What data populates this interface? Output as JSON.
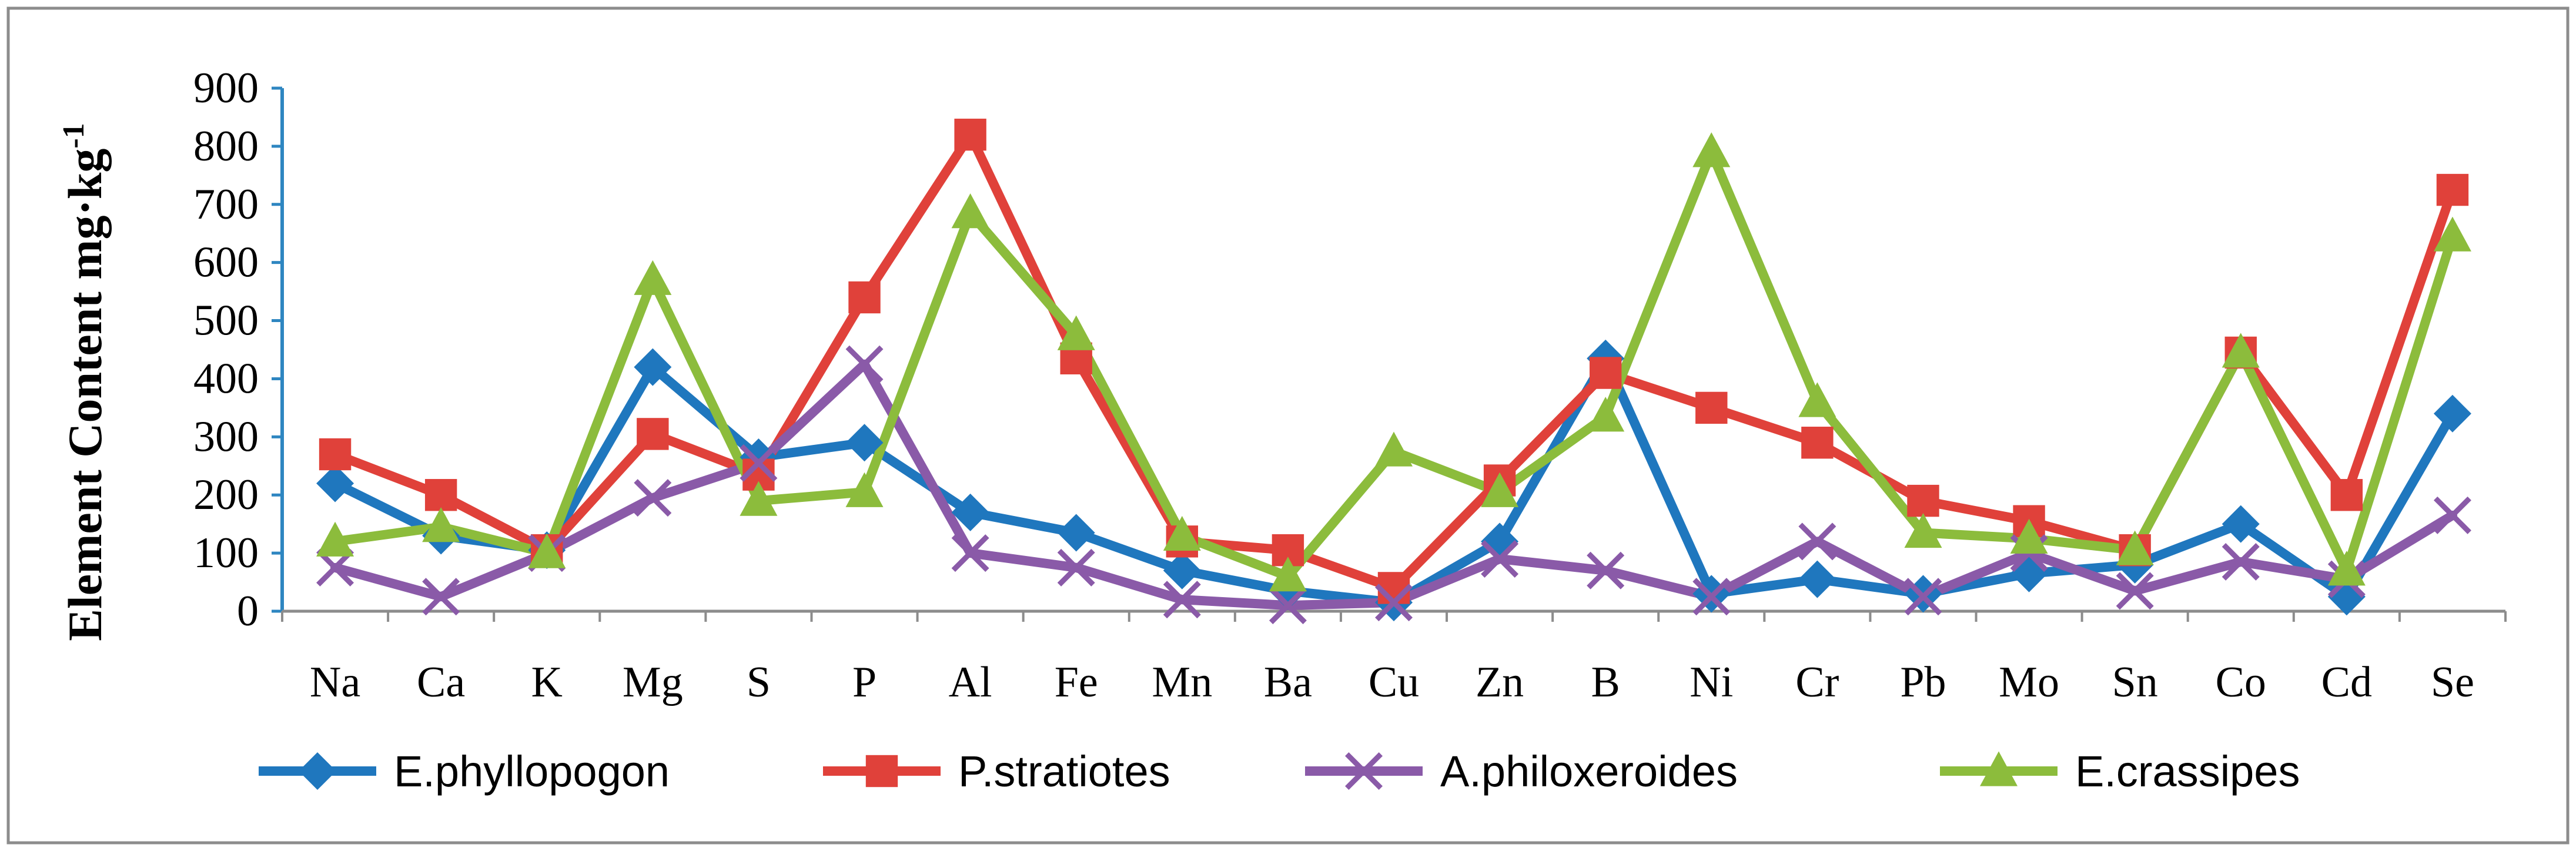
{
  "chart_data": {
    "type": "line",
    "title": "",
    "xlabel": "",
    "ylabel": "Element Content mg·kg",
    "ylabel_superscript": "-1",
    "ylim": [
      0,
      900
    ],
    "yticks": [
      0,
      100,
      200,
      300,
      400,
      500,
      600,
      700,
      800,
      900
    ],
    "grid": false,
    "legend_position": "bottom",
    "categories": [
      "Na",
      "Ca",
      "K",
      "Mg",
      "S",
      "P",
      "Al",
      "Fe",
      "Mn",
      "Ba",
      "Cu",
      "Zn",
      "B",
      "Ni",
      "Cr",
      "Pb",
      "Mo",
      "Sn",
      "Co",
      "Cd",
      "Se"
    ],
    "series": [
      {
        "name": "E.phyllopogon",
        "color": "#1f77be",
        "marker": "diamond",
        "values": [
          220,
          130,
          105,
          420,
          265,
          290,
          170,
          135,
          70,
          35,
          15,
          120,
          435,
          30,
          55,
          30,
          65,
          80,
          150,
          25,
          340
        ]
      },
      {
        "name": "P.stratiotes",
        "color": "#e0413a",
        "marker": "square",
        "values": [
          270,
          200,
          105,
          305,
          235,
          540,
          820,
          435,
          120,
          105,
          40,
          225,
          410,
          350,
          290,
          190,
          155,
          105,
          445,
          200,
          725
        ]
      },
      {
        "name": "A.philoxeroides",
        "color": "#8a5aa8",
        "marker": "x",
        "values": [
          75,
          25,
          100,
          195,
          255,
          425,
          100,
          75,
          20,
          10,
          15,
          90,
          70,
          25,
          120,
          25,
          100,
          35,
          85,
          55,
          165
        ]
      },
      {
        "name": "E.crassipes",
        "color": "#8cbc3c",
        "marker": "triangle",
        "values": [
          120,
          145,
          100,
          570,
          190,
          205,
          685,
          475,
          130,
          60,
          275,
          205,
          335,
          790,
          360,
          135,
          125,
          105,
          445,
          70,
          645
        ]
      }
    ]
  }
}
